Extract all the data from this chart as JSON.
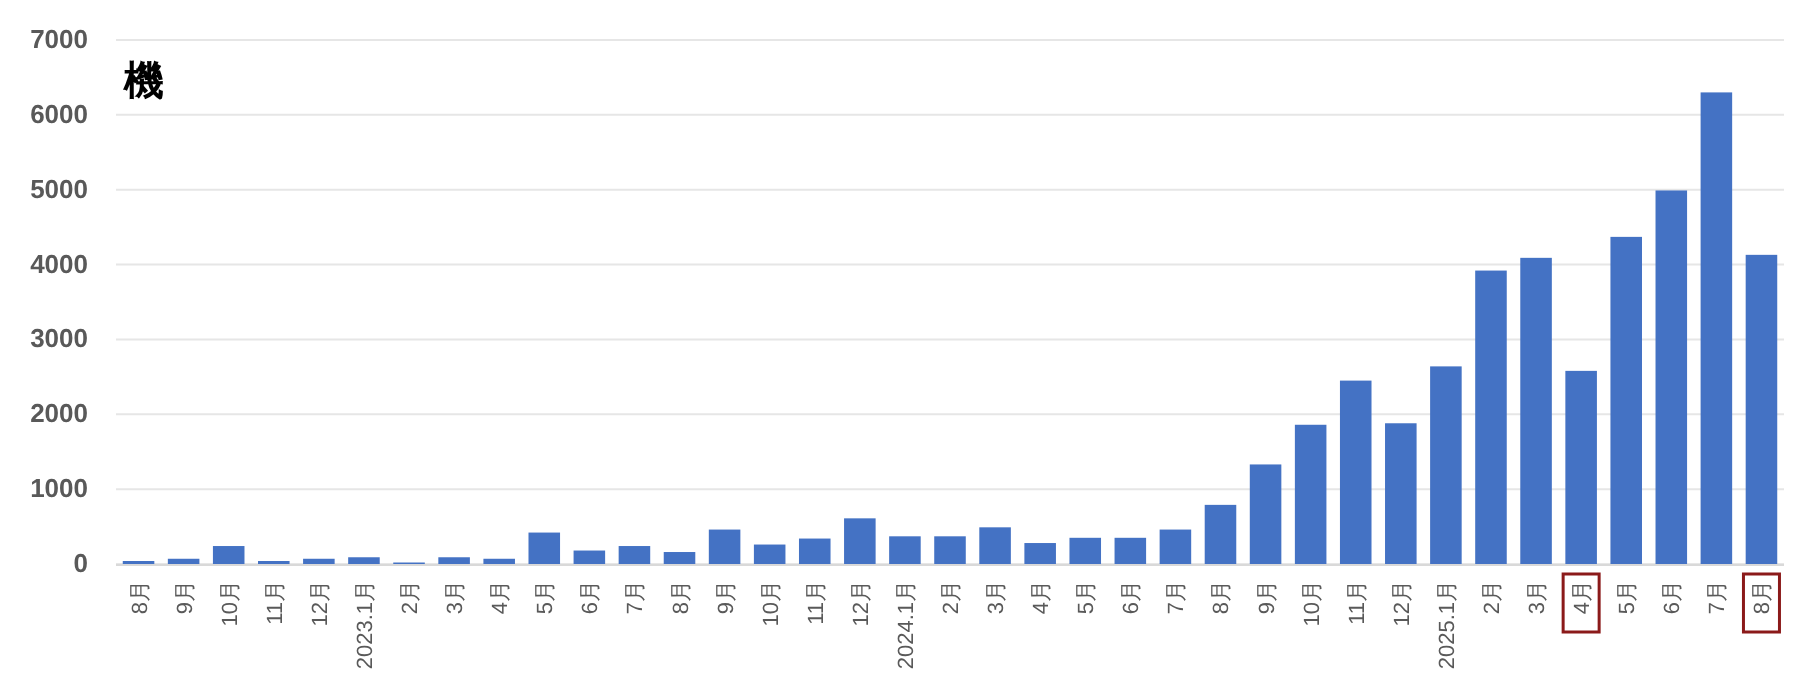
{
  "chart_data": {
    "type": "bar",
    "ylabel": "機",
    "categories": [
      "8月",
      "9月",
      "10月",
      "11月",
      "12月",
      "2023.1月",
      "2月",
      "3月",
      "4月",
      "5月",
      "6月",
      "7月",
      "8月",
      "9月",
      "10月",
      "11月",
      "12月",
      "2024.1月",
      "2月",
      "3月",
      "4月",
      "5月",
      "6月",
      "7月",
      "8月",
      "9月",
      "10月",
      "11月",
      "12月",
      "2025.1月",
      "2月",
      "3月",
      "4月",
      "5月",
      "6月",
      "7月",
      "8月"
    ],
    "values": [
      40,
      70,
      240,
      40,
      70,
      90,
      20,
      90,
      70,
      420,
      180,
      240,
      160,
      460,
      260,
      340,
      610,
      370,
      370,
      490,
      280,
      350,
      350,
      460,
      790,
      1330,
      1860,
      2450,
      1880,
      2640,
      3920,
      4090,
      2580,
      4370,
      4990,
      6300,
      4130
    ],
    "color": "#4472c4",
    "ylim": [
      0,
      7000
    ],
    "yticks": [
      0,
      1000,
      2000,
      3000,
      4000,
      5000,
      6000,
      7000
    ],
    "grid": "y"
  }
}
